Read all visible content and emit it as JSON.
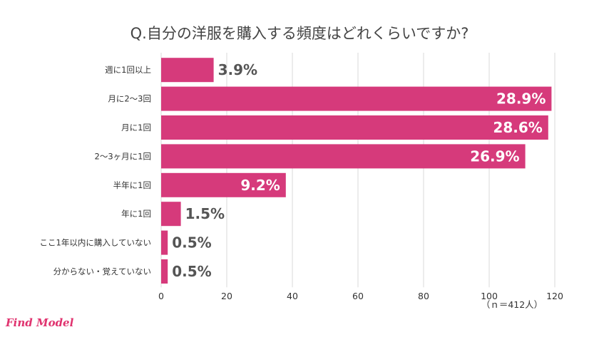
{
  "logo_text": "Find Model",
  "chart_data": {
    "type": "bar",
    "orientation": "horizontal",
    "title": "Q.自分の洋服を購入する頻度はどれくらいですか?",
    "categories": [
      "週に1回以上",
      "月に2〜3回",
      "月に1回",
      "2〜3ヶ月に1回",
      "半年に1回",
      "年に1回",
      "ここ1年以内に購入していない",
      "分からない・覚えていない"
    ],
    "counts": [
      16,
      119,
      118,
      111,
      38,
      6,
      2,
      2
    ],
    "labels": [
      "3.9%",
      "28.9%",
      "28.6%",
      "26.9%",
      "9.2%",
      "1.5%",
      "0.5%",
      "0.5%"
    ],
    "xlim": [
      0,
      120
    ],
    "x_ticks": [
      0,
      20,
      40,
      60,
      80,
      100,
      120
    ],
    "x_tick_labels": [
      "0",
      "20",
      "40",
      "60",
      "80",
      "100",
      "120"
    ],
    "grid": "vertical",
    "bar_color": "#d63a7b",
    "grid_color": "#d9d9d9",
    "note": "（ｎ＝412人）"
  }
}
